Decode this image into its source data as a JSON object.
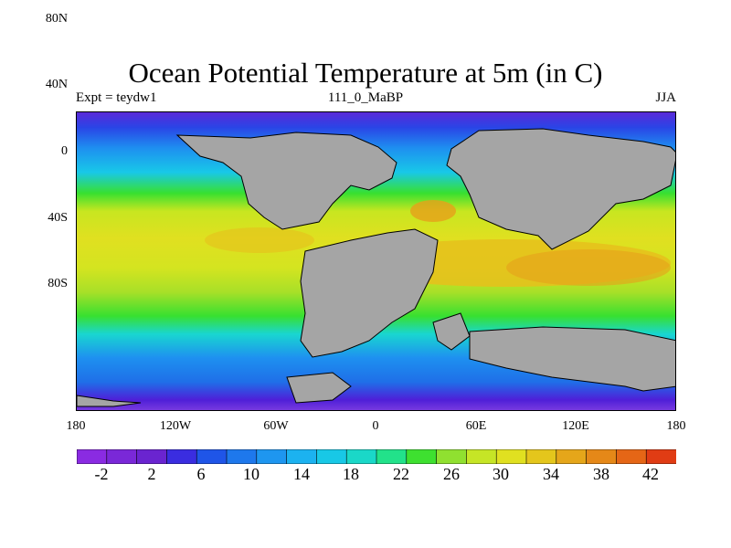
{
  "title": "Ocean Potential Temperature at 5m (in C)",
  "subtitle_left": "Expt = teydw1",
  "subtitle_center": "111_0_MaBP",
  "subtitle_right": "JJA",
  "colors": {
    "land": "#a5a5a5",
    "coast": "#000000",
    "bands": [
      "#a7c",
      "#7f3fe0",
      "#6f2bd6",
      "#4f1fd8",
      "#2a44e6",
      "#1f6fe8",
      "#1e90f0",
      "#1ab0f0",
      "#18c8e8",
      "#19d6d0",
      "#1ee0a0",
      "#38e030",
      "#8fe030",
      "#c8e620",
      "#e0e020",
      "#e6c01c",
      "#e6a01a",
      "#e68018",
      "#e65a16",
      "#e02a12"
    ],
    "colorbar": [
      "#8a2be2",
      "#7a28d8",
      "#6a24d0",
      "#3a2de0",
      "#1f55e8",
      "#1e78ec",
      "#1e96f0",
      "#1cb2f0",
      "#18c8e6",
      "#1ad8c8",
      "#22e28a",
      "#3ee030",
      "#90e030",
      "#c6e526",
      "#e0e020",
      "#e4c61c",
      "#e5a61a",
      "#e58818",
      "#e56616",
      "#e03c14"
    ]
  },
  "y_axis": {
    "ticks": [
      "80N",
      "40N",
      "0",
      "40S",
      "80S"
    ]
  },
  "x_axis": {
    "ticks": [
      "180",
      "120W",
      "60W",
      "0",
      "60E",
      "120E",
      "180"
    ]
  },
  "colorbar": {
    "labels": [
      "-2",
      "2",
      "6",
      "10",
      "14",
      "18",
      "22",
      "26",
      "30",
      "34",
      "38",
      "42"
    ]
  }
}
